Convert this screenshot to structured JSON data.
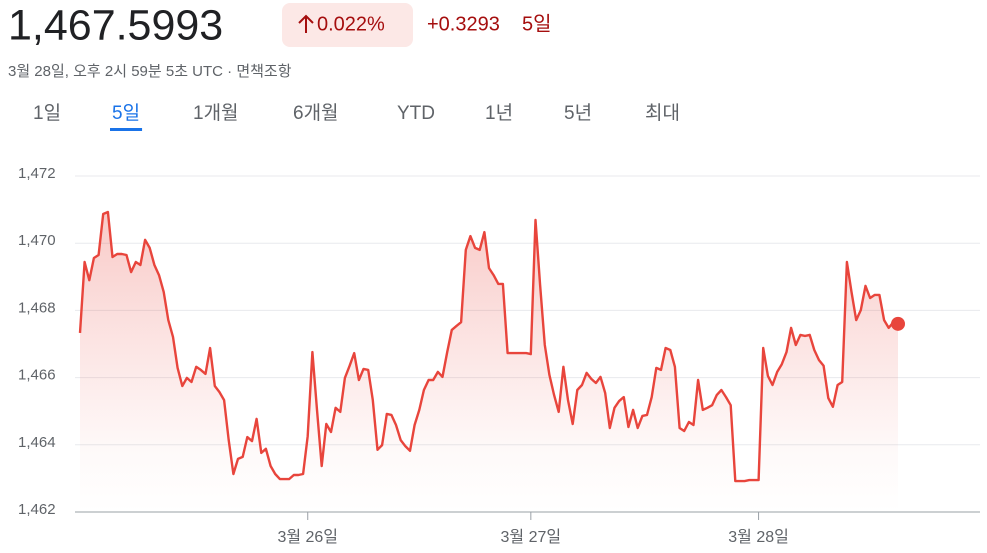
{
  "header": {
    "price": "1,467.5993",
    "change_percent": "0.022%",
    "change": "+0.3293",
    "period": "5일",
    "timestamp": "3월 28일, 오후 2시 59분 5초 UTC · 면책조항"
  },
  "tabs": {
    "items": [
      "1일",
      "5일",
      "1개월",
      "6개월",
      "YTD",
      "1년",
      "5년",
      "최대"
    ],
    "selected": 1
  },
  "chart_data": {
    "type": "line",
    "color": "#e8453c",
    "grid": true,
    "ylim": [
      1462,
      1472
    ],
    "yticks": [
      {
        "value": 1462,
        "label": "1,462"
      },
      {
        "value": 1464,
        "label": "1,464"
      },
      {
        "value": 1466,
        "label": "1,466"
      },
      {
        "value": 1468,
        "label": "1,468"
      },
      {
        "value": 1470,
        "label": "1,470"
      },
      {
        "value": 1472,
        "label": "1,472"
      }
    ],
    "categories": [
      null,
      null,
      null,
      null,
      null,
      null,
      null,
      null,
      null,
      null,
      null,
      null,
      null,
      null,
      null,
      null,
      null,
      null,
      null,
      null,
      null,
      null,
      null,
      null,
      null,
      null,
      null,
      null,
      null,
      null,
      null,
      null,
      null,
      null,
      null,
      null,
      null,
      null,
      null,
      null,
      null,
      null,
      null,
      null,
      null,
      null,
      null,
      null,
      null,
      "3월 26일",
      null,
      null,
      null,
      null,
      null,
      null,
      null,
      null,
      null,
      null,
      null,
      null,
      null,
      null,
      null,
      null,
      null,
      null,
      null,
      null,
      null,
      null,
      null,
      null,
      null,
      null,
      null,
      null,
      null,
      null,
      null,
      null,
      null,
      null,
      null,
      null,
      null,
      null,
      null,
      null,
      null,
      null,
      null,
      null,
      null,
      null,
      null,
      "3월 27일",
      null,
      null,
      null,
      null,
      null,
      null,
      null,
      null,
      null,
      null,
      null,
      null,
      null,
      null,
      null,
      null,
      null,
      null,
      null,
      null,
      null,
      null,
      null,
      null,
      null,
      null,
      null,
      null,
      null,
      null,
      null,
      null,
      null,
      null,
      null,
      null,
      null,
      null,
      null,
      null,
      null,
      null,
      null,
      null,
      null,
      null,
      null,
      null,
      "3월 28일",
      null,
      null,
      null,
      null,
      null,
      null,
      null,
      null,
      null,
      null,
      null,
      null,
      null,
      null,
      null,
      null,
      null,
      null,
      null,
      null,
      null,
      null,
      null,
      null,
      null,
      null,
      null,
      null,
      null,
      null
    ],
    "values": [
      1467.33,
      1469.44,
      1468.9,
      1469.56,
      1469.65,
      1470.87,
      1470.93,
      1469.59,
      1469.68,
      1469.68,
      1469.65,
      1469.14,
      1469.44,
      1469.35,
      1470.1,
      1469.86,
      1469.35,
      1469.05,
      1468.55,
      1467.71,
      1467.21,
      1466.29,
      1465.75,
      1465.99,
      1465.87,
      1466.32,
      1466.23,
      1466.11,
      1466.88,
      1465.75,
      1465.57,
      1465.33,
      1464.14,
      1463.13,
      1463.58,
      1463.64,
      1464.23,
      1464.11,
      1464.77,
      1463.76,
      1463.88,
      1463.37,
      1463.13,
      1462.98,
      1462.98,
      1462.98,
      1463.1,
      1463.1,
      1463.13,
      1464.26,
      1466.76,
      1465.04,
      1463.37,
      1464.62,
      1464.38,
      1465.1,
      1464.98,
      1465.99,
      1466.35,
      1466.73,
      1465.93,
      1466.26,
      1466.23,
      1465.33,
      1463.85,
      1463.99,
      1464.92,
      1464.89,
      1464.59,
      1464.14,
      1463.96,
      1463.82,
      1464.59,
      1465.04,
      1465.63,
      1465.93,
      1465.93,
      1466.17,
      1466.02,
      1466.76,
      1467.42,
      1467.54,
      1467.65,
      1469.8,
      1470.21,
      1469.86,
      1469.8,
      1470.33,
      1469.26,
      1469.05,
      1468.79,
      1468.79,
      1466.73,
      1466.73,
      1466.73,
      1466.73,
      1466.73,
      1466.7,
      1470.69,
      1468.76,
      1466.97,
      1466.08,
      1465.48,
      1464.98,
      1466.32,
      1465.33,
      1464.62,
      1465.63,
      1465.78,
      1466.14,
      1465.96,
      1465.84,
      1466.02,
      1465.54,
      1464.5,
      1465.1,
      1465.3,
      1465.42,
      1464.53,
      1465.04,
      1464.5,
      1464.86,
      1464.89,
      1465.42,
      1466.29,
      1466.23,
      1466.88,
      1466.82,
      1466.32,
      1464.5,
      1464.41,
      1464.68,
      1464.59,
      1465.93,
      1465.04,
      1465.1,
      1465.18,
      1465.48,
      1465.63,
      1465.42,
      1465.18,
      1462.92,
      1462.92,
      1462.92,
      1462.95,
      1462.95,
      1462.95,
      1466.88,
      1466.05,
      1465.78,
      1466.17,
      1466.4,
      1466.76,
      1467.48,
      1466.97,
      1467.27,
      1467.24,
      1467.27,
      1466.82,
      1466.52,
      1466.35,
      1465.39,
      1465.13,
      1465.78,
      1465.87,
      1469.44,
      1468.55,
      1467.71,
      1468.01,
      1468.73,
      1468.37,
      1468.46,
      1468.46,
      1467.71,
      1467.48,
      1467.65,
      1467.6
    ]
  }
}
